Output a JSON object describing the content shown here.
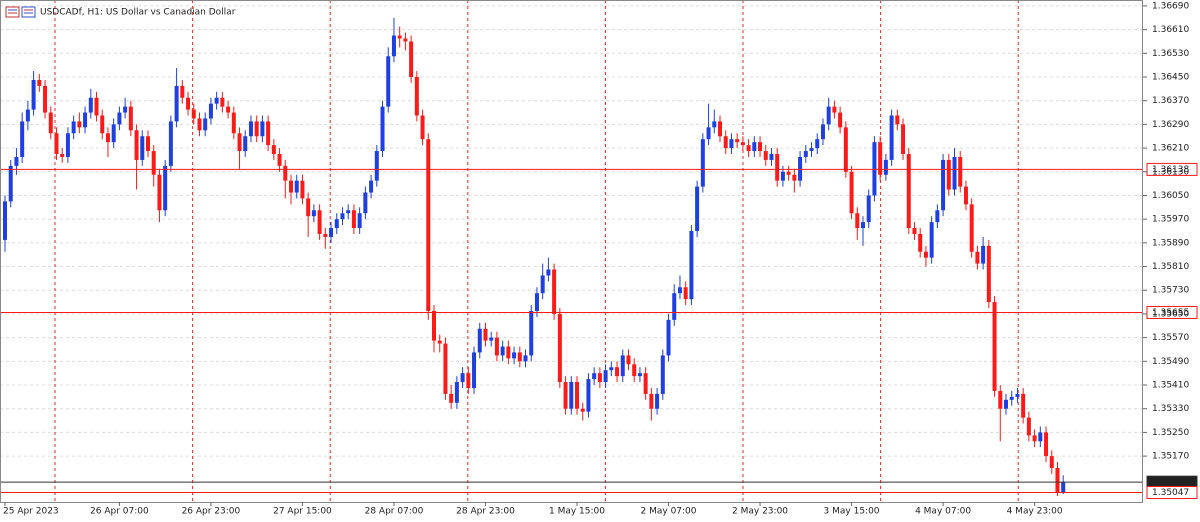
{
  "chart_data": {
    "type": "candlestick",
    "title": "USDCADf, H1:  US Dollar vs Canadian Dollar",
    "up_color": "#1f3fe0",
    "down_color": "#ff1a1a",
    "grid": true,
    "ylim": [
      1.35015,
      1.3671
    ],
    "yticks": [
      {
        "value": 1.3669,
        "label": "1.36690"
      },
      {
        "value": 1.3661,
        "label": "1.36610"
      },
      {
        "value": 1.3653,
        "label": "1.36530"
      },
      {
        "value": 1.3645,
        "label": "1.36450"
      },
      {
        "value": 1.3637,
        "label": "1.36370"
      },
      {
        "value": 1.3629,
        "label": "1.36290"
      },
      {
        "value": 1.3621,
        "label": "1.36210"
      },
      {
        "value": 1.3613,
        "label": "1.36130"
      },
      {
        "value": 1.3605,
        "label": "1.36050"
      },
      {
        "value": 1.3597,
        "label": "1.35970"
      },
      {
        "value": 1.3589,
        "label": "1.35890"
      },
      {
        "value": 1.3581,
        "label": "1.35810"
      },
      {
        "value": 1.3573,
        "label": "1.35730"
      },
      {
        "value": 1.3565,
        "label": "1.35650"
      },
      {
        "value": 1.3557,
        "label": "1.35570"
      },
      {
        "value": 1.3549,
        "label": "1.35490"
      },
      {
        "value": 1.3541,
        "label": "1.35410"
      },
      {
        "value": 1.3533,
        "label": "1.35330"
      },
      {
        "value": 1.3525,
        "label": "1.35250"
      },
      {
        "value": 1.3517,
        "label": "1.35170"
      }
    ],
    "levels": [
      {
        "value": 1.36138,
        "color": "#ff1a1a"
      },
      {
        "value": 1.35655,
        "color": "#ff1a1a"
      },
      {
        "value": 1.35082,
        "color": "#333333"
      },
      {
        "value": 1.35047,
        "color": "#ff1a1a"
      }
    ],
    "categories": [
      "25 Apr 2023",
      null,
      null,
      null,
      null,
      null,
      null,
      null,
      null,
      null,
      null,
      null,
      null,
      null,
      null,
      null,
      null,
      null,
      null,
      null,
      "26 Apr 07:00",
      null,
      null,
      null,
      null,
      null,
      null,
      null,
      null,
      null,
      null,
      null,
      null,
      null,
      null,
      null,
      "26 Apr 23:00",
      null,
      null,
      null,
      null,
      null,
      null,
      null,
      null,
      null,
      null,
      null,
      null,
      null,
      null,
      null,
      "27 Apr 15:00",
      null,
      null,
      null,
      null,
      null,
      null,
      null,
      null,
      null,
      null,
      null,
      null,
      null,
      null,
      null,
      "28 Apr 07:00",
      null,
      null,
      null,
      null,
      null,
      null,
      null,
      null,
      null,
      null,
      null,
      null,
      null,
      null,
      null,
      "28 Apr 23:00",
      null,
      null,
      null,
      null,
      null,
      null,
      null,
      null,
      null,
      null,
      null,
      null,
      null,
      null,
      null,
      "1 May 15:00",
      null,
      null,
      null,
      null,
      null,
      null,
      null,
      null,
      null,
      null,
      null,
      null,
      null,
      null,
      null,
      "2 May 07:00",
      null,
      null,
      null,
      null,
      null,
      null,
      null,
      null,
      null,
      null,
      null,
      null,
      null,
      null,
      null,
      "2 May 23:00",
      null,
      null,
      null,
      null,
      null,
      null,
      null,
      null,
      null,
      null,
      null,
      null,
      null,
      null,
      null,
      "3 May 15:00",
      null,
      null,
      null,
      null,
      null,
      null,
      null,
      null,
      null,
      null,
      null,
      null,
      null,
      null,
      null,
      "4 May 07:00",
      null,
      null,
      null,
      null,
      null,
      null,
      null,
      null,
      null,
      null,
      null,
      null,
      null,
      null,
      null,
      "4 May 23:00",
      null,
      null,
      null,
      null,
      null
    ],
    "open": [
      1.359,
      1.3603,
      1.3615,
      1.3618,
      1.363,
      1.3634,
      1.3644,
      1.3642,
      1.3633,
      1.3626,
      1.3619,
      1.3618,
      1.3626,
      1.363,
      1.3628,
      1.3633,
      1.3638,
      1.3632,
      1.3626,
      1.3623,
      1.3629,
      1.3633,
      1.3635,
      1.3627,
      1.3617,
      1.3625,
      1.362,
      1.3612,
      1.36,
      1.3615,
      1.363,
      1.3642,
      1.3638,
      1.3634,
      1.3631,
      1.3627,
      1.3631,
      1.3636,
      1.3638,
      1.3635,
      1.3633,
      1.3626,
      1.362,
      1.3625,
      1.363,
      1.3625,
      1.363,
      1.3622,
      1.3619,
      1.3615,
      1.361,
      1.3606,
      1.361,
      1.3604,
      1.3598,
      1.36,
      1.3592,
      1.3591,
      1.3594,
      1.3597,
      1.3599,
      1.36,
      1.3594,
      1.3599,
      1.3606,
      1.361,
      1.362,
      1.3635,
      1.3652,
      1.3659,
      1.3658,
      1.3657,
      1.3645,
      1.3632,
      1.3624,
      1.3566,
      1.3556,
      1.3555,
      1.3538,
      1.3535,
      1.3542,
      1.3545,
      1.354,
      1.3552,
      1.356,
      1.3556,
      1.3557,
      1.3551,
      1.3554,
      1.355,
      1.3552,
      1.3549,
      1.3551,
      1.3566,
      1.3572,
      1.3578,
      1.358,
      1.3565,
      1.3542,
      1.3533,
      1.3542,
      1.3533,
      1.3532,
      1.3543,
      1.3545,
      1.3542,
      1.3546,
      1.3547,
      1.3544,
      1.3551,
      1.3548,
      1.3544,
      1.3545,
      1.3538,
      1.3533,
      1.3538,
      1.3551,
      1.3563,
      1.3572,
      1.3574,
      1.357,
      1.3593,
      1.3608,
      1.3624,
      1.3628,
      1.363,
      1.3625,
      1.3621,
      1.3624,
      1.3623,
      1.3622,
      1.362,
      1.3623,
      1.362,
      1.3617,
      1.3619,
      1.361,
      1.3613,
      1.3612,
      1.361,
      1.3618,
      1.362,
      1.3621,
      1.3624,
      1.3629,
      1.3635,
      1.3633,
      1.3628,
      1.3613,
      1.3599,
      1.3594,
      1.3596,
      1.3605,
      1.3623,
      1.3612,
      1.3617,
      1.3632,
      1.3629,
      1.3619,
      1.3594,
      1.3592,
      1.3586,
      1.3584,
      1.3596,
      1.36,
      1.3617,
      1.3607,
      1.3618,
      1.3608,
      1.3602,
      1.3586,
      1.3582,
      1.3588,
      1.3569,
      1.3539,
      1.3533,
      1.3536,
      1.3537,
      1.3538,
      1.353,
      1.3524,
      1.3522,
      1.3525,
      1.3517,
      1.3513,
      1.35047
    ],
    "high": [
      1.3605,
      1.3617,
      1.3621,
      1.3633,
      1.3637,
      1.3647,
      1.3646,
      1.3644,
      1.3635,
      1.3628,
      1.3621,
      1.3628,
      1.3632,
      1.3633,
      1.3635,
      1.3641,
      1.364,
      1.3634,
      1.3628,
      1.3631,
      1.3635,
      1.3638,
      1.3637,
      1.3629,
      1.3627,
      1.3627,
      1.3622,
      1.3614,
      1.3617,
      1.3632,
      1.3648,
      1.3644,
      1.364,
      1.3636,
      1.3633,
      1.3633,
      1.3638,
      1.364,
      1.364,
      1.3637,
      1.3635,
      1.3628,
      1.3627,
      1.3632,
      1.3632,
      1.3632,
      1.3632,
      1.3624,
      1.3621,
      1.3617,
      1.3612,
      1.3612,
      1.3612,
      1.3606,
      1.3602,
      1.3602,
      1.3594,
      1.3596,
      1.3599,
      1.3601,
      1.3602,
      1.3602,
      1.3601,
      1.3608,
      1.3612,
      1.3622,
      1.3637,
      1.3655,
      1.3665,
      1.3662,
      1.366,
      1.3659,
      1.3647,
      1.3634,
      1.3626,
      1.3568,
      1.3558,
      1.3557,
      1.3541,
      1.3544,
      1.3547,
      1.3547,
      1.3554,
      1.3562,
      1.3562,
      1.3559,
      1.3559,
      1.3556,
      1.3556,
      1.3554,
      1.3554,
      1.3553,
      1.3568,
      1.3574,
      1.3582,
      1.3584,
      1.3582,
      1.3567,
      1.3544,
      1.3544,
      1.3544,
      1.3535,
      1.3545,
      1.3547,
      1.3547,
      1.3548,
      1.3549,
      1.3549,
      1.3553,
      1.3553,
      1.355,
      1.3547,
      1.3547,
      1.354,
      1.354,
      1.3553,
      1.3565,
      1.3575,
      1.3578,
      1.3576,
      1.3595,
      1.361,
      1.3626,
      1.3636,
      1.3634,
      1.3632,
      1.3627,
      1.3626,
      1.3626,
      1.3625,
      1.3624,
      1.3625,
      1.3625,
      1.3622,
      1.3621,
      1.3621,
      1.3615,
      1.3615,
      1.3614,
      1.362,
      1.3622,
      1.3623,
      1.3626,
      1.3631,
      1.3638,
      1.3637,
      1.3635,
      1.363,
      1.3615,
      1.3601,
      1.3598,
      1.3607,
      1.3625,
      1.3625,
      1.3619,
      1.3634,
      1.3634,
      1.3631,
      1.3621,
      1.3596,
      1.3594,
      1.3588,
      1.3598,
      1.3602,
      1.3619,
      1.3619,
      1.3621,
      1.362,
      1.361,
      1.3604,
      1.3588,
      1.3591,
      1.359,
      1.3571,
      1.3541,
      1.3538,
      1.3539,
      1.354,
      1.354,
      1.3532,
      1.3526,
      1.3527,
      1.3527,
      1.3519,
      1.3515,
      1.35105
    ],
    "low": [
      1.3586,
      1.3601,
      1.3612,
      1.3616,
      1.3627,
      1.3632,
      1.364,
      1.3631,
      1.3624,
      1.3617,
      1.3616,
      1.3616,
      1.3624,
      1.3626,
      1.3626,
      1.3631,
      1.363,
      1.3624,
      1.3618,
      1.3621,
      1.3627,
      1.3631,
      1.3625,
      1.3607,
      1.3615,
      1.3618,
      1.3608,
      1.3596,
      1.3598,
      1.3613,
      1.3628,
      1.3636,
      1.3632,
      1.3629,
      1.3625,
      1.3625,
      1.3629,
      1.3634,
      1.3633,
      1.3631,
      1.3624,
      1.3614,
      1.3618,
      1.3623,
      1.3623,
      1.3623,
      1.362,
      1.3617,
      1.3613,
      1.3604,
      1.3602,
      1.3604,
      1.3602,
      1.3591,
      1.3596,
      1.359,
      1.3587,
      1.3589,
      1.3592,
      1.3595,
      1.3597,
      1.3592,
      1.3592,
      1.3597,
      1.3604,
      1.3608,
      1.3618,
      1.3633,
      1.365,
      1.3655,
      1.3654,
      1.3643,
      1.363,
      1.3622,
      1.3563,
      1.3552,
      1.3552,
      1.3536,
      1.3533,
      1.3533,
      1.354,
      1.3538,
      1.3538,
      1.355,
      1.3554,
      1.3554,
      1.3549,
      1.3549,
      1.3548,
      1.3548,
      1.3547,
      1.3547,
      1.3549,
      1.3564,
      1.357,
      1.3576,
      1.3563,
      1.354,
      1.3531,
      1.3531,
      1.3531,
      1.3529,
      1.353,
      1.3541,
      1.354,
      1.354,
      1.3544,
      1.3542,
      1.3542,
      1.3546,
      1.3542,
      1.3542,
      1.3536,
      1.3529,
      1.3531,
      1.3536,
      1.3549,
      1.3561,
      1.357,
      1.3568,
      1.3568,
      1.3591,
      1.3606,
      1.3622,
      1.3626,
      1.3623,
      1.3619,
      1.3619,
      1.3621,
      1.362,
      1.3618,
      1.3618,
      1.3618,
      1.3615,
      1.3615,
      1.3608,
      1.3608,
      1.361,
      1.3606,
      1.3608,
      1.3616,
      1.3618,
      1.3619,
      1.3622,
      1.3627,
      1.3631,
      1.3626,
      1.3611,
      1.3597,
      1.359,
      1.3588,
      1.3594,
      1.3603,
      1.361,
      1.361,
      1.3615,
      1.3627,
      1.3617,
      1.3592,
      1.359,
      1.3584,
      1.3581,
      1.3582,
      1.3594,
      1.3598,
      1.3605,
      1.3605,
      1.3606,
      1.36,
      1.3584,
      1.358,
      1.358,
      1.3567,
      1.3537,
      1.3522,
      1.3531,
      1.3534,
      1.3535,
      1.3528,
      1.3522,
      1.352,
      1.352,
      1.3515,
      1.3511,
      1.35035,
      1.35042
    ],
    "close": [
      1.3603,
      1.3615,
      1.3618,
      1.363,
      1.3634,
      1.3644,
      1.3642,
      1.3633,
      1.3626,
      1.3619,
      1.3618,
      1.3626,
      1.363,
      1.3628,
      1.3633,
      1.3638,
      1.3632,
      1.3626,
      1.3623,
      1.3629,
      1.3633,
      1.3635,
      1.3627,
      1.3617,
      1.3625,
      1.362,
      1.3612,
      1.36,
      1.3615,
      1.363,
      1.3642,
      1.3638,
      1.3634,
      1.3631,
      1.3627,
      1.3631,
      1.3636,
      1.3638,
      1.3635,
      1.3633,
      1.3626,
      1.362,
      1.3625,
      1.363,
      1.3625,
      1.363,
      1.3622,
      1.3619,
      1.3615,
      1.361,
      1.3606,
      1.361,
      1.3604,
      1.3598,
      1.36,
      1.3592,
      1.3591,
      1.3594,
      1.3597,
      1.3599,
      1.36,
      1.3594,
      1.3599,
      1.3606,
      1.361,
      1.362,
      1.3635,
      1.3652,
      1.3659,
      1.3658,
      1.3657,
      1.3645,
      1.3632,
      1.3624,
      1.3566,
      1.3556,
      1.3555,
      1.3538,
      1.3535,
      1.3542,
      1.3545,
      1.354,
      1.3552,
      1.356,
      1.3556,
      1.3557,
      1.3551,
      1.3554,
      1.355,
      1.3552,
      1.3549,
      1.3551,
      1.3566,
      1.3572,
      1.3578,
      1.358,
      1.3565,
      1.3542,
      1.3533,
      1.3542,
      1.3533,
      1.3532,
      1.3543,
      1.3545,
      1.3542,
      1.3546,
      1.3547,
      1.3544,
      1.3551,
      1.3548,
      1.3544,
      1.3545,
      1.3538,
      1.3533,
      1.3538,
      1.3551,
      1.3563,
      1.3572,
      1.3574,
      1.357,
      1.3593,
      1.3608,
      1.3624,
      1.3628,
      1.363,
      1.3625,
      1.3621,
      1.3624,
      1.3623,
      1.3622,
      1.362,
      1.3623,
      1.362,
      1.3617,
      1.3619,
      1.361,
      1.3613,
      1.3612,
      1.361,
      1.3618,
      1.362,
      1.3621,
      1.3624,
      1.3629,
      1.3635,
      1.3633,
      1.3628,
      1.3613,
      1.3599,
      1.3594,
      1.3596,
      1.3605,
      1.3623,
      1.3612,
      1.3617,
      1.3632,
      1.3629,
      1.3619,
      1.3594,
      1.3592,
      1.3586,
      1.3584,
      1.3596,
      1.36,
      1.3617,
      1.3607,
      1.3618,
      1.3608,
      1.3602,
      1.3586,
      1.3582,
      1.3588,
      1.3569,
      1.3539,
      1.3533,
      1.3536,
      1.3537,
      1.3538,
      1.353,
      1.3524,
      1.3522,
      1.3525,
      1.3517,
      1.3513,
      1.35047,
      1.35082
    ]
  }
}
